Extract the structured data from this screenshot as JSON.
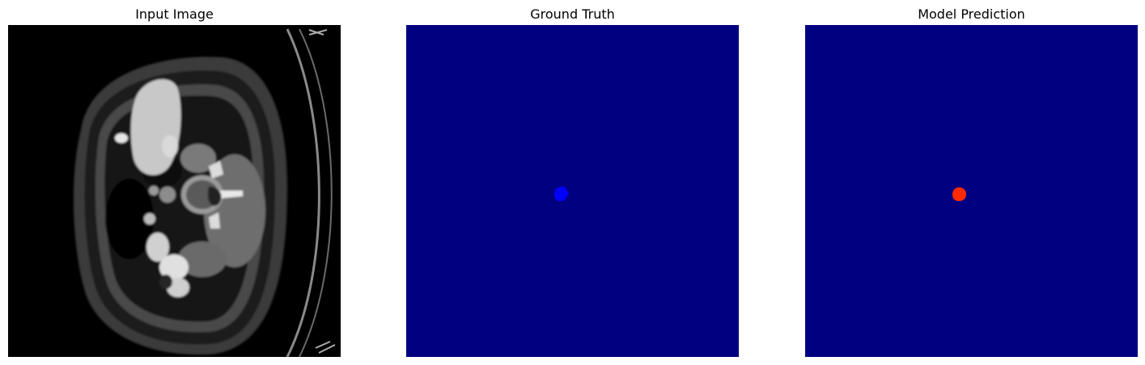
{
  "figure": {
    "panels": [
      {
        "title": "Input Image",
        "kind": "ct-scan",
        "background_color": "#000000"
      },
      {
        "title": "Ground Truth",
        "kind": "segmentation-mask",
        "background_color": "#000080",
        "mask_color": "#0000ff"
      },
      {
        "title": "Model Prediction",
        "kind": "segmentation-mask",
        "background_color": "#000080",
        "mask_color": "#ff2a00"
      }
    ]
  }
}
